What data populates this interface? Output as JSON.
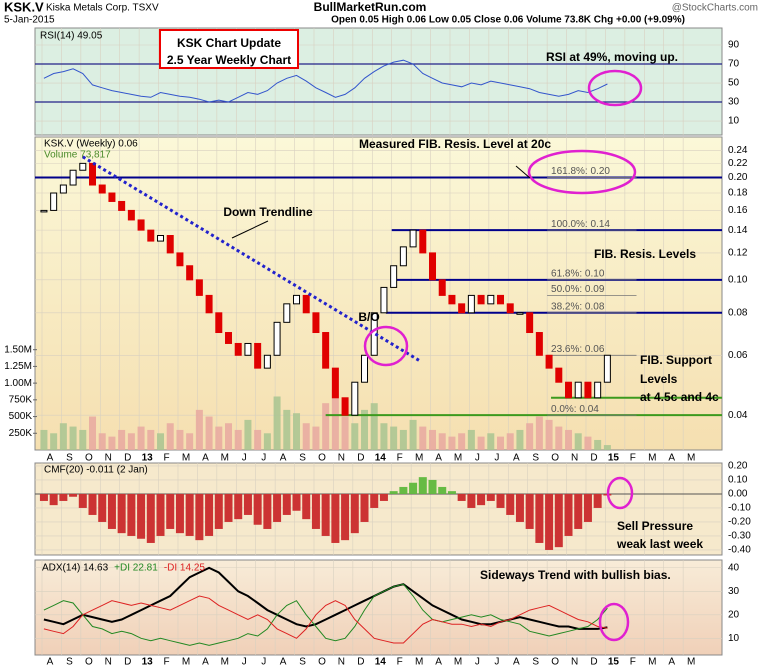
{
  "header": {
    "symbol": "KSK.V",
    "name": "Kiska Metals Corp. TSXV",
    "date": "5-Jan-2015",
    "site": "BullMarketRun.com",
    "quote": "Open 0.05 High 0.06 Low 0.05 Close 0.06 Volume 73.8K Chg +0.00 (+9.09%)",
    "credit": "@StockCharts.com"
  },
  "chart_data": {
    "type": "candlestick",
    "x": [
      -4.9,
      -4.4,
      -3.9,
      -3.4,
      -2.9,
      -2.4,
      -1.9,
      -1.4,
      -0.9,
      -0.4,
      0.1,
      0.6,
      1.1,
      1.6,
      2.1,
      2.6,
      3.1,
      3.6,
      4.1,
      4.6,
      5.1,
      5.6,
      6.1,
      6.6,
      7.1,
      7.6,
      8.1,
      8.6,
      9.1,
      9.6,
      10.1,
      10.6,
      11.1,
      11.6,
      12.1,
      12.6,
      13.1,
      13.6,
      14.1,
      14.6,
      15.1,
      15.6,
      16.1,
      16.6,
      17.1,
      17.6,
      18.1,
      18.6,
      19.1,
      19.6,
      20.1,
      20.6,
      21.1,
      21.6,
      22.1,
      22.6,
      23.1,
      23.6,
      24.1
    ],
    "xlim": [
      -5.36,
      30.0
    ],
    "xticks": [
      {
        "value": -5,
        "label": "A"
      },
      {
        "value": -4,
        "label": "S"
      },
      {
        "value": -3,
        "label": "O"
      },
      {
        "value": -2,
        "label": "N"
      },
      {
        "value": -1,
        "label": "D"
      },
      {
        "value": 0,
        "label": "13"
      },
      {
        "value": 1,
        "label": "F"
      },
      {
        "value": 2,
        "label": "M"
      },
      {
        "value": 3,
        "label": "A"
      },
      {
        "value": 4,
        "label": "M"
      },
      {
        "value": 5,
        "label": "J"
      },
      {
        "value": 6,
        "label": "J"
      },
      {
        "value": 7,
        "label": "A"
      },
      {
        "value": 8,
        "label": "S"
      },
      {
        "value": 9,
        "label": "O"
      },
      {
        "value": 10,
        "label": "N"
      },
      {
        "value": 11,
        "label": "D"
      },
      {
        "value": 12,
        "label": "14"
      },
      {
        "value": 13,
        "label": "F"
      },
      {
        "value": 14,
        "label": "M"
      },
      {
        "value": 15,
        "label": "A"
      },
      {
        "value": 16,
        "label": "M"
      },
      {
        "value": 17,
        "label": "J"
      },
      {
        "value": 18,
        "label": "J"
      },
      {
        "value": 19,
        "label": "A"
      },
      {
        "value": 20,
        "label": "S"
      },
      {
        "value": 21,
        "label": "O"
      },
      {
        "value": 22,
        "label": "N"
      },
      {
        "value": 23,
        "label": "D"
      },
      {
        "value": 24,
        "label": "15"
      },
      {
        "value": 25,
        "label": "F"
      },
      {
        "value": 26,
        "label": "M"
      },
      {
        "value": 27,
        "label": "A"
      },
      {
        "value": 28,
        "label": "M"
      }
    ],
    "price": {
      "label": "KSK.V (Weekly) 0.06",
      "log": true,
      "ylim": [
        0.0316,
        0.263
      ],
      "yticks": [
        0.24,
        0.22,
        {
          "value": 0.2,
          "label": "0.20"
        },
        0.18,
        0.16,
        0.14,
        0.12,
        {
          "value": 0.1,
          "label": "0.10"
        },
        0.08,
        0.06,
        0.04
      ],
      "close": [
        0.16,
        0.18,
        0.19,
        0.21,
        0.22,
        0.19,
        0.18,
        0.17,
        0.16,
        0.15,
        0.14,
        0.13,
        0.135,
        0.12,
        0.11,
        0.1,
        0.09,
        0.08,
        0.07,
        0.065,
        0.06,
        0.065,
        0.055,
        0.06,
        0.075,
        0.085,
        0.09,
        0.08,
        0.07,
        0.055,
        0.045,
        0.04,
        0.05,
        0.06,
        0.08,
        0.095,
        0.11,
        0.125,
        0.14,
        0.12,
        0.1,
        0.09,
        0.085,
        0.08,
        0.09,
        0.085,
        0.09,
        0.085,
        0.08,
        0.08,
        0.07,
        0.06,
        0.055,
        0.05,
        0.045,
        0.05,
        0.045,
        0.05,
        0.06
      ],
      "up_color": "#000000",
      "down_color": "#e00000",
      "levels": [
        {
          "value": 0.2,
          "start": -5.36,
          "color": "#00008b"
        },
        {
          "value": 0.14,
          "start": 13.0,
          "color": "#00008b"
        },
        {
          "value": 0.1,
          "start": 13.1,
          "color": "#00008b"
        },
        {
          "value": 0.08,
          "start": 12.7,
          "color": "#00008b"
        },
        {
          "value": 0.045,
          "start": 21.2,
          "color": "#3c9a1e"
        },
        {
          "value": 0.04,
          "start": 9.6,
          "color": "#3c9a1e"
        }
      ],
      "fib": [
        {
          "value": 0.2,
          "label": "161.8%: 0.20"
        },
        {
          "value": 0.14,
          "label": "100.0%: 0.14"
        },
        {
          "value": 0.1,
          "label": "61.8%: 0.10"
        },
        {
          "value": 0.09,
          "label": "50.0%: 0.09"
        },
        {
          "value": 0.08,
          "label": "38.2%: 0.08"
        },
        {
          "value": 0.06,
          "label": "23.6%: 0.06"
        },
        {
          "value": 0.04,
          "label": "0.0%: 0.04"
        }
      ],
      "trendline": {
        "x": [
          -2.9,
          14.4
        ],
        "y": [
          0.23,
          0.058
        ],
        "color": "#2222cc"
      }
    },
    "volume": {
      "label": "Volume 73,817",
      "ylim": [
        0,
        4680000
      ],
      "yticks": [
        {
          "value": 1500000,
          "label": "1.50M"
        },
        {
          "value": 1250000,
          "label": "1.25M"
        },
        {
          "value": 1000000,
          "label": "1.00M"
        },
        {
          "value": 750000,
          "label": "750K"
        },
        {
          "value": 500000,
          "label": "500K"
        },
        {
          "value": 250000,
          "label": "250K"
        }
      ],
      "values": [
        300000,
        250000,
        400000,
        350000,
        300000,
        500000,
        250000,
        200000,
        300000,
        250000,
        350000,
        300000,
        250000,
        400000,
        300000,
        250000,
        600000,
        500000,
        350000,
        400000,
        300000,
        450000,
        300000,
        250000,
        800000,
        600000,
        550000,
        400000,
        350000,
        700000,
        900000,
        500000,
        400000,
        600000,
        700000,
        400000,
        350000,
        300000,
        450000,
        350000,
        300000,
        250000,
        200000,
        250000,
        300000,
        200000,
        250000,
        200000,
        250000,
        300000,
        400000,
        500000,
        450000,
        350000,
        300000,
        250000,
        200000,
        150000,
        73817
      ]
    },
    "rsi": {
      "label": "RSI(14) 49.05",
      "ylim": [
        -4.7,
        107.9
      ],
      "yticks": [
        90,
        70,
        50,
        30,
        10
      ],
      "bands": [
        70,
        30
      ],
      "color": "#3355cc",
      "values": [
        55,
        60,
        62,
        65,
        60,
        48,
        45,
        42,
        40,
        38,
        36,
        35,
        40,
        38,
        36,
        35,
        33,
        30,
        32,
        30,
        35,
        40,
        38,
        42,
        50,
        55,
        58,
        52,
        45,
        40,
        35,
        38,
        45,
        55,
        62,
        68,
        72,
        74,
        70,
        60,
        55,
        50,
        48,
        46,
        50,
        48,
        52,
        50,
        48,
        46,
        44,
        40,
        38,
        36,
        38,
        42,
        40,
        44,
        49
      ]
    },
    "cmf": {
      "label": "CMF(20) -0.011 (2 Jan)",
      "ylim": [
        -0.436,
        0.221
      ],
      "yticks": [
        {
          "value": 0.2,
          "label": "0.20"
        },
        {
          "value": 0.1,
          "label": "0.10"
        },
        {
          "value": 0,
          "label": "0.00"
        },
        {
          "value": -0.1,
          "label": "-0.10"
        },
        {
          "value": -0.2,
          "label": "-0.20"
        },
        {
          "value": -0.3,
          "label": "-0.30"
        },
        {
          "value": -0.4,
          "label": "-0.40"
        }
      ],
      "pos_color": "#66bb44",
      "neg_color": "#cc3333",
      "values": [
        -0.05,
        -0.08,
        -0.05,
        -0.02,
        -0.1,
        -0.15,
        -0.2,
        -0.25,
        -0.28,
        -0.3,
        -0.32,
        -0.35,
        -0.3,
        -0.25,
        -0.28,
        -0.3,
        -0.33,
        -0.3,
        -0.25,
        -0.2,
        -0.18,
        -0.15,
        -0.22,
        -0.25,
        -0.2,
        -0.15,
        -0.12,
        -0.18,
        -0.25,
        -0.3,
        -0.35,
        -0.33,
        -0.28,
        -0.2,
        -0.1,
        -0.05,
        0.02,
        0.05,
        0.08,
        0.12,
        0.1,
        0.05,
        0.02,
        -0.05,
        -0.1,
        -0.08,
        -0.05,
        -0.1,
        -0.15,
        -0.2,
        -0.25,
        -0.35,
        -0.4,
        -0.38,
        -0.3,
        -0.25,
        -0.2,
        -0.1,
        -0.011
      ]
    },
    "adx": {
      "ylim": [
        2.9,
        43.3
      ],
      "yticks": [
        40,
        30,
        20,
        10
      ],
      "series": [
        {
          "name": "ADX(14) 14.63",
          "color": "#000000",
          "values": [
            18,
            17,
            16,
            18,
            20,
            19,
            18,
            17,
            18,
            20,
            22,
            24,
            26,
            28,
            32,
            36,
            38,
            40,
            38,
            34,
            30,
            28,
            25,
            22,
            20,
            18,
            16,
            15,
            16,
            18,
            20,
            22,
            24,
            26,
            28,
            30,
            32,
            33,
            30,
            27,
            24,
            22,
            20,
            18,
            17,
            16,
            16,
            17,
            18,
            19,
            18,
            17,
            16,
            15,
            15,
            14,
            14,
            14,
            14.63
          ]
        },
        {
          "name": "+DI 22.81",
          "color": "#228822",
          "values": [
            22,
            24,
            26,
            25,
            20,
            15,
            14,
            12,
            13,
            12,
            10,
            9,
            10,
            9,
            8,
            7,
            8,
            7,
            8,
            9,
            10,
            12,
            11,
            14,
            20,
            24,
            26,
            20,
            15,
            10,
            9,
            10,
            15,
            22,
            28,
            30,
            32,
            33,
            28,
            22,
            18,
            17,
            18,
            19,
            20,
            19,
            20,
            18,
            17,
            16,
            13,
            12,
            11,
            12,
            13,
            14,
            15,
            18,
            22.81
          ]
        },
        {
          "name": "-DI 14.25",
          "color": "#dd2222",
          "values": [
            14,
            13,
            12,
            15,
            20,
            22,
            24,
            26,
            25,
            24,
            25,
            24,
            23,
            22,
            24,
            26,
            28,
            27,
            24,
            22,
            20,
            18,
            20,
            18,
            14,
            12,
            10,
            14,
            20,
            24,
            26,
            24,
            18,
            14,
            10,
            9,
            8,
            8,
            12,
            16,
            18,
            17,
            16,
            16,
            15,
            16,
            15,
            17,
            18,
            20,
            22,
            23,
            24,
            22,
            20,
            18,
            17,
            15,
            14.25
          ]
        }
      ]
    },
    "annotations": [
      "KSK Chart Update",
      "2.5 Year Weekly Chart",
      "RSI at 49%, moving up.",
      "Measured FIB. Resis. Level at 20c",
      "Down Trendline",
      "B/O",
      "FIB. Resis. Levels",
      "FIB. Support",
      "Levels",
      "at 4.5c and 4c",
      "Sell Pressure",
      "weak last week",
      "Sideways Trend with bullish bias."
    ]
  }
}
